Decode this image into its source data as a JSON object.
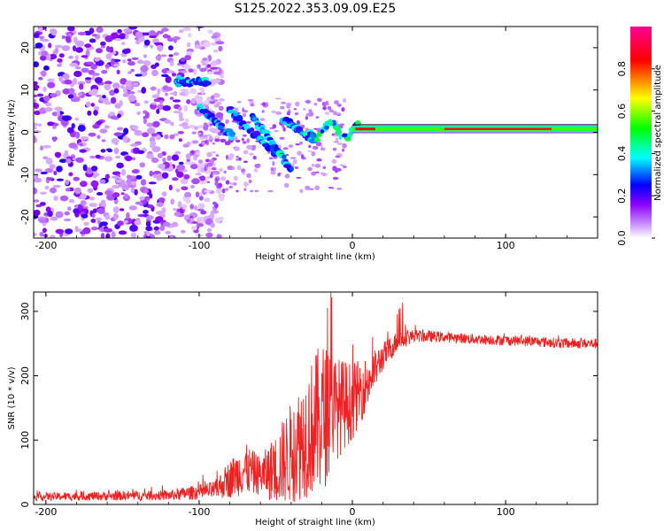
{
  "title": "S125.2022.353.09.09.E25",
  "chart_data": [
    {
      "type": "heatmap",
      "xlabel": "Height of straight line (km)",
      "ylabel": "Frequency (Hz)",
      "xlim": [
        -208,
        160
      ],
      "ylim": [
        -25,
        25
      ],
      "x_ticks": [
        -200,
        -100,
        0,
        100
      ],
      "y_ticks": [
        -20,
        -10,
        0,
        10,
        20
      ],
      "colorbar": {
        "label": "Normalized spectral amplitude",
        "range": [
          0,
          1
        ],
        "ticks": [
          "0.0",
          "0.2",
          "0.4",
          "0.6",
          "0.8"
        ],
        "colormap": "rainbow",
        "colors": [
          "#ffffff",
          "#8a00ff",
          "#0000ff",
          "#00ffff",
          "#00ff00",
          "#ffff00",
          "#ff0000",
          "#ff0090"
        ]
      },
      "features": {
        "noise_region_x": [
          -208,
          -95
        ],
        "dispersive_streaks": [
          {
            "x": [
              -115,
              -95
            ],
            "y": [
              12,
              12
            ]
          },
          {
            "x": [
              -100,
              -78
            ],
            "y": [
              6,
              -1
            ]
          },
          {
            "x": [
              -80,
              -50
            ],
            "y": [
              5,
              -5
            ]
          },
          {
            "x": [
              -65,
              -40
            ],
            "y": [
              4,
              -9
            ]
          },
          {
            "x": [
              -45,
              -25
            ],
            "y": [
              3,
              -2
            ]
          }
        ],
        "carrier_line": {
          "x": [
            0,
            160
          ],
          "y": 0.8,
          "peak_amplitude": 0.9
        }
      }
    },
    {
      "type": "line",
      "xlabel": "Height of straight line (km)",
      "ylabel": "SNR (10 * v/v)",
      "xlim": [
        -208,
        160
      ],
      "ylim": [
        0,
        330
      ],
      "x_ticks": [
        -200,
        -100,
        0,
        100
      ],
      "y_ticks": [
        0,
        100,
        200,
        300
      ],
      "color": "#ee2222",
      "envelope": {
        "x": [
          -208,
          -120,
          -90,
          -80,
          -70,
          -60,
          -50,
          -40,
          -30,
          -20,
          -10,
          0,
          10,
          20,
          30,
          40,
          60,
          80,
          100,
          120,
          140,
          160
        ],
        "y": [
          12,
          14,
          22,
          40,
          55,
          45,
          55,
          80,
          110,
          135,
          150,
          160,
          190,
          230,
          255,
          262,
          260,
          257,
          255,
          253,
          250,
          250
        ],
        "amp": [
          6,
          8,
          14,
          30,
          40,
          30,
          55,
          80,
          100,
          120,
          80,
          60,
          40,
          22,
          16,
          10,
          8,
          8,
          8,
          8,
          8,
          8
        ]
      }
    }
  ]
}
